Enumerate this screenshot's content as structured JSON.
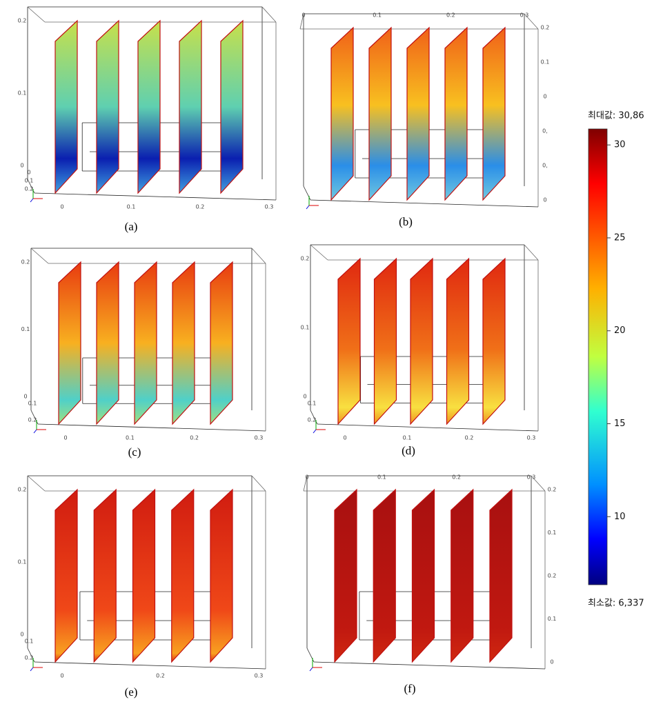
{
  "panels": [
    {
      "caption": "(a)",
      "left": [
        "0.2",
        "0.1",
        "0"
      ],
      "bottom": [
        "0",
        "0.1",
        "0.2",
        "0.3"
      ],
      "side": [
        "0",
        "0.1",
        "0.2"
      ]
    },
    {
      "caption": "(b)",
      "top": [
        "0",
        "0.1",
        "0.2",
        "0.3"
      ],
      "right": [
        "0.2",
        "0.1",
        "0",
        "0,",
        "0,",
        "0"
      ]
    },
    {
      "caption": "(c)",
      "left": [
        "0.2",
        "0.1",
        "0"
      ],
      "bottom": [
        "0",
        "0.1",
        "0.2",
        "0.3"
      ],
      "side": [
        "0.1",
        "0.2"
      ]
    },
    {
      "caption": "(d)",
      "left": [
        "0.2",
        "0.1",
        "0"
      ],
      "bottom": [
        "0",
        "0.1",
        "0.2",
        "0.3"
      ],
      "side": [
        "0.1",
        "0.2"
      ]
    },
    {
      "caption": "(e)",
      "left": [
        "0.2",
        "0.1",
        "0"
      ],
      "bottom": [
        "0",
        "0.2",
        "0.3"
      ],
      "side": [
        "0.1",
        "0.2"
      ]
    },
    {
      "caption": "(f)",
      "top": [
        "0",
        "0.1",
        "0.2",
        "0.3"
      ],
      "right": [
        "0.2",
        "0.1",
        "0.2",
        "0.1",
        "0"
      ]
    }
  ],
  "colorbar": {
    "max_label": "최대값: 30,86",
    "min_label": "최소값: 6,337",
    "max": 30.86,
    "min": 6.337,
    "ticks": [
      30,
      25,
      20,
      15,
      10
    ]
  }
}
